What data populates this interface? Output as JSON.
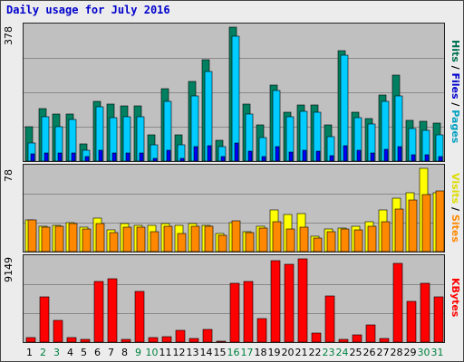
{
  "title": "Daily usage for July 2016",
  "panels": {
    "top": {
      "max_label": "378",
      "legend": [
        "Pages",
        "Files",
        "Hits"
      ]
    },
    "mid": {
      "max_label": "78",
      "legend": [
        "Sites",
        "Visits"
      ]
    },
    "bottom": {
      "max_label": "9149",
      "legend": [
        "KBytes"
      ]
    }
  },
  "colors": {
    "hits": "#008060",
    "files": "#00ccff",
    "pages": "#0000ff",
    "visits": "#ffff00",
    "sites": "#ff8800",
    "kbytes": "#ff0000",
    "weekday_label": "#000000",
    "weekend_label": "#008040",
    "legend_pages": "#00a0c0",
    "legend_files": "#0000cc",
    "legend_hits": "#007050",
    "legend_sites": "#ff8800",
    "legend_visits": "#dddd00",
    "legend_kbytes": "#ff0000"
  },
  "chart_data": [
    {
      "type": "bar",
      "title": "Daily usage for July 2016",
      "categories": [
        "1",
        "2",
        "3",
        "4",
        "5",
        "6",
        "7",
        "8",
        "9",
        "10",
        "11",
        "12",
        "13",
        "14",
        "15",
        "16",
        "17",
        "18",
        "19",
        "20",
        "21",
        "22",
        "23",
        "24",
        "25",
        "26",
        "27",
        "28",
        "29",
        "30",
        "31"
      ],
      "weekend_days": [
        "2",
        "3",
        "9",
        "10",
        "16",
        "17",
        "23",
        "24",
        "30",
        "31"
      ],
      "ylim": [
        0,
        378
      ],
      "series": [
        {
          "name": "Hits",
          "values": [
            98,
            148,
            132,
            132,
            48,
            168,
            160,
            155,
            155,
            74,
            205,
            74,
            225,
            285,
            58,
            378,
            162,
            103,
            215,
            138,
            158,
            158,
            102,
            312,
            138,
            120,
            187,
            243,
            115,
            112,
            108
          ]
        },
        {
          "name": "Files",
          "values": [
            52,
            125,
            98,
            118,
            30,
            152,
            123,
            126,
            126,
            46,
            168,
            46,
            185,
            252,
            40,
            352,
            132,
            67,
            200,
            125,
            140,
            139,
            68,
            298,
            122,
            104,
            168,
            185,
            92,
            88,
            74
          ]
        },
        {
          "name": "Pages",
          "values": [
            20,
            24,
            22,
            22,
            12,
            30,
            24,
            22,
            22,
            8,
            30,
            8,
            40,
            44,
            12,
            50,
            28,
            14,
            40,
            26,
            30,
            28,
            16,
            44,
            30,
            22,
            32,
            40,
            18,
            18,
            14
          ]
        }
      ]
    },
    {
      "type": "bar",
      "categories": [
        "1",
        "2",
        "3",
        "4",
        "5",
        "6",
        "7",
        "8",
        "9",
        "10",
        "11",
        "12",
        "13",
        "14",
        "15",
        "16",
        "17",
        "18",
        "19",
        "20",
        "21",
        "22",
        "23",
        "24",
        "25",
        "26",
        "27",
        "28",
        "29",
        "30",
        "31"
      ],
      "ylim": [
        0,
        78
      ],
      "series": [
        {
          "name": "Visits",
          "values": [
            30,
            24,
            25,
            27,
            23,
            31,
            20,
            26,
            25,
            25,
            26,
            25,
            26,
            25,
            17,
            27,
            19,
            24,
            39,
            35,
            36,
            14,
            21,
            22,
            24,
            28,
            39,
            50,
            55,
            78,
            55
          ]
        },
        {
          "name": "Sites",
          "values": [
            30,
            23,
            24,
            26,
            21,
            26,
            18,
            23,
            23,
            19,
            24,
            17,
            24,
            24,
            15,
            29,
            18,
            22,
            28,
            21,
            23,
            13,
            19,
            21,
            20,
            24,
            28,
            40,
            48,
            53,
            57
          ]
        }
      ]
    },
    {
      "type": "bar",
      "categories": [
        "1",
        "2",
        "3",
        "4",
        "5",
        "6",
        "7",
        "8",
        "9",
        "10",
        "11",
        "12",
        "13",
        "14",
        "15",
        "16",
        "17",
        "18",
        "19",
        "20",
        "21",
        "22",
        "23",
        "24",
        "25",
        "26",
        "27",
        "28",
        "29",
        "30",
        "31"
      ],
      "ylim": [
        0,
        9149
      ],
      "series": [
        {
          "name": "KBytes",
          "values": [
            480,
            4950,
            2350,
            460,
            330,
            6700,
            7000,
            330,
            5550,
            520,
            560,
            1280,
            400,
            1430,
            140,
            6500,
            6650,
            2600,
            8950,
            8600,
            9149,
            1020,
            5050,
            250,
            790,
            1840,
            370,
            8700,
            4450,
            6500,
            5000
          ]
        }
      ]
    }
  ]
}
